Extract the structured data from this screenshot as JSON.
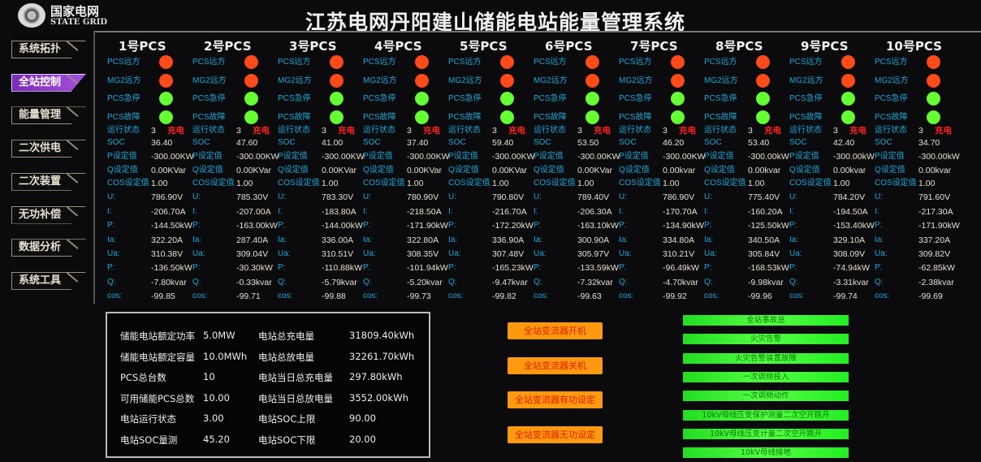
{
  "header": {
    "logo_cn": "国家电网",
    "logo_en": "STATE GRID",
    "title": "江苏电网丹阳建山储能电站能量管理系统"
  },
  "nav": [
    {
      "label": "系统拓扑",
      "active": false
    },
    {
      "label": "全站控制",
      "active": true
    },
    {
      "label": "能量管理",
      "active": false
    },
    {
      "label": "二次供电",
      "active": false
    },
    {
      "label": "二次装置",
      "active": false
    },
    {
      "label": "无功补偿",
      "active": false
    },
    {
      "label": "数据分析",
      "active": false
    },
    {
      "label": "系统工具",
      "active": false
    }
  ],
  "colors": {
    "led_red": "#ff4a1a",
    "led_green": "#66ff33",
    "label": "#1fa8d8",
    "active_nav": "#8a3bc8",
    "button": "#ff9a10",
    "alarm_bar": "#44ff33"
  },
  "pcs_labels": {
    "remote": "PCS远方",
    "mg2": "MG2远方",
    "estop": "PCS急停",
    "fault": "PCS故障",
    "state": "运行状态",
    "soc": "SOC",
    "p_set": "P设定值",
    "q_set": "Q设定值",
    "cos_set": "COS设定值",
    "u": "U:",
    "i": "I:",
    "p": "P:",
    "ia": "Ia:",
    "ua": "Ua:",
    "p2": "P:",
    "q": "Q:",
    "cos": "cos:"
  },
  "pcs": [
    {
      "name": "1号PCS",
      "leds": [
        "red",
        "red",
        "green",
        "green"
      ],
      "state": "3",
      "state_text": "充电",
      "soc": "36.40",
      "p_set": "-300.00KW",
      "q_set": "0.00KVar",
      "cos_set": "1.00",
      "u": "786.90V",
      "i": "-206.70A",
      "p": "-144.50kW",
      "ia": "322.20A",
      "ua": "310.38V",
      "p2": "-136.50kW",
      "q": "-7.80kvar",
      "cos": "-99.85"
    },
    {
      "name": "2号PCS",
      "leds": [
        "red",
        "red",
        "green",
        "green"
      ],
      "state": "3",
      "state_text": "充电",
      "soc": "47.60",
      "p_set": "-300.00KW",
      "q_set": "0.00KVar",
      "cos_set": "1.00",
      "u": "785.30V",
      "i": "-207.00A",
      "p": "-163.00kW",
      "ia": "287.40A",
      "ua": "309.04V",
      "p2": "-30.30kW",
      "q": "-0.33kvar",
      "cos": "-99.71"
    },
    {
      "name": "3号PCS",
      "leds": [
        "red",
        "red",
        "green",
        "green"
      ],
      "state": "3",
      "state_text": "充电",
      "soc": "41.00",
      "p_set": "-300.00KW",
      "q_set": "0.00KVar",
      "cos_set": "1.00",
      "u": "783.30V",
      "i": "-183.80A",
      "p": "-144.00kW",
      "ia": "336.00A",
      "ua": "310.51V",
      "p2": "-110.88kW",
      "q": "-5.79kvar",
      "cos": "-99.88"
    },
    {
      "name": "4号PCS",
      "leds": [
        "red",
        "red",
        "green",
        "green"
      ],
      "state": "3",
      "state_text": "充电",
      "soc": "37.40",
      "p_set": "-300.00KW",
      "q_set": "0.00KVar",
      "cos_set": "1.00",
      "u": "780.90V",
      "i": "-218.50A",
      "p": "-171.90kW",
      "ia": "322.80A",
      "ua": "308.35V",
      "p2": "-101.94kW",
      "q": "-5.20kvar",
      "cos": "-99.73"
    },
    {
      "name": "5号PCS",
      "leds": [
        "red",
        "red",
        "green",
        "green"
      ],
      "state": "3",
      "state_text": "充电",
      "soc": "59.40",
      "p_set": "-300.00KW",
      "q_set": "0.00KVar",
      "cos_set": "1.00",
      "u": "790.80V",
      "i": "-216.70A",
      "p": "-172.20kW",
      "ia": "336.90A",
      "ua": "307.48V",
      "p2": "-165.23kW",
      "q": "-9.47kvar",
      "cos": "-99.82"
    },
    {
      "name": "6号PCS",
      "leds": [
        "red",
        "red",
        "green",
        "green"
      ],
      "state": "3",
      "state_text": "充电",
      "soc": "53.50",
      "p_set": "-300.00KW",
      "q_set": "0.00KVar",
      "cos_set": "1.00",
      "u": "789.40V",
      "i": "-206.30A",
      "p": "-163.10kW",
      "ia": "300.90A",
      "ua": "305.97V",
      "p2": "-133.59kW",
      "q": "-7.32kvar",
      "cos": "-99.63"
    },
    {
      "name": "7号PCS",
      "leds": [
        "red",
        "red",
        "green",
        "green"
      ],
      "state": "3",
      "state_text": "充电",
      "soc": "46.20",
      "p_set": "-300.00KW",
      "q_set": "0.00kvar",
      "cos_set": "1.00",
      "u": "786.90V",
      "i": "-170.70A",
      "p": "-134.90kW",
      "ia": "334.80A",
      "ua": "310.21V",
      "p2": "-96.49kW",
      "q": "-4.70kvar",
      "cos": "-99.92"
    },
    {
      "name": "8号PCS",
      "leds": [
        "red",
        "red",
        "green",
        "green"
      ],
      "state": "3",
      "state_text": "充电",
      "soc": "53.40",
      "p_set": "-300.00kW",
      "q_set": "0.00kvar",
      "cos_set": "1.00",
      "u": "775.40V",
      "i": "-160.20A",
      "p": "-125.50kW",
      "ia": "340.50A",
      "ua": "305.84V",
      "p2": "-168.53kW",
      "q": "-9.98kvar",
      "cos": "-99.96"
    },
    {
      "name": "9号PCS",
      "leds": [
        "red",
        "red",
        "green",
        "green"
      ],
      "state": "3",
      "state_text": "充电",
      "soc": "42.40",
      "p_set": "-300.00kW",
      "q_set": "0.00kvar",
      "cos_set": "1.00",
      "u": "784.20V",
      "i": "-194.50A",
      "p": "-153.40kW",
      "ia": "329.10A",
      "ua": "308.09V",
      "p2": "-74.94kW",
      "q": "-3.31kvar",
      "cos": "-99.74"
    },
    {
      "name": "10号PCS",
      "leds": [
        "red",
        "red",
        "green",
        "green"
      ],
      "state": "3",
      "state_text": "充电",
      "soc": "34.70",
      "p_set": "-300.00kW",
      "q_set": "0.00kvar",
      "cos_set": "1.00",
      "u": "791.60V",
      "i": "-217.30A",
      "p": "-171.90kW",
      "ia": "337.20A",
      "ua": "309.82V",
      "p2": "-62.85kW",
      "q": "-2.38kvar",
      "cos": "-99.69"
    }
  ],
  "station_info": [
    {
      "label": "储能电站额定功率",
      "value": "5.0MW"
    },
    {
      "label": "储能电站额定容量",
      "value": "10.0MWh"
    },
    {
      "label": "PCS总台数",
      "value": "10"
    },
    {
      "label": "可用储能PCS总数",
      "value": "10.00"
    },
    {
      "label": "电站运行状态",
      "value": "3.00"
    },
    {
      "label": "电站SOC量测",
      "value": "45.20"
    },
    {
      "label": "电站总充电量",
      "value": "31809.40kWh"
    },
    {
      "label": "电站总放电量",
      "value": "32261.70kWh"
    },
    {
      "label": "电站当日总充电量",
      "value": "297.80kWh"
    },
    {
      "label": "电站当日总放电量",
      "value": "3552.00kWh"
    },
    {
      "label": "电站SOC上限",
      "value": "90.00"
    },
    {
      "label": "电站SOC下限",
      "value": "20.00"
    }
  ],
  "control_buttons": [
    "全站变流器开机",
    "全站变流器关机",
    "全站变流器有功设定",
    "全站变流器无功设定"
  ],
  "alarms": [
    "全站事故总",
    "火灾告警",
    "火灾告警装置故障",
    "一次调频投入",
    "一次调频动作",
    "10kV母线压变保护测量二次空开跳开",
    "10kV母线压变计量二次空开跳开",
    "10kV母线接地"
  ]
}
